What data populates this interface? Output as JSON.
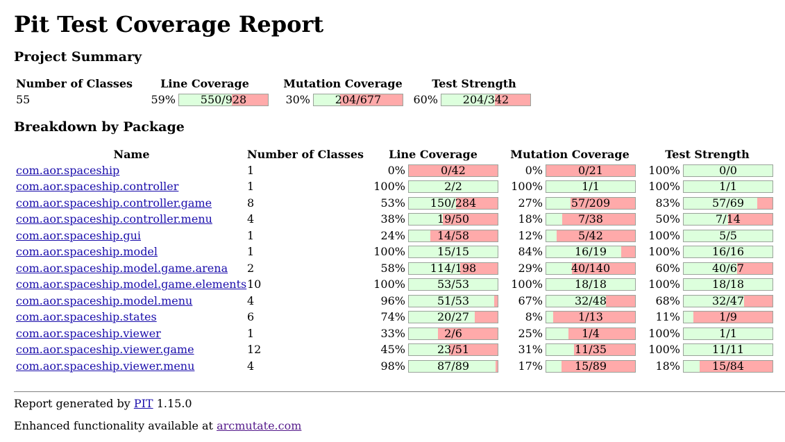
{
  "title": "Pit Test Coverage Report",
  "summary": {
    "heading": "Project Summary",
    "headers": {
      "classes": "Number of Classes",
      "line": "Line Coverage",
      "mutation": "Mutation Coverage",
      "strength": "Test Strength"
    },
    "classes": "55",
    "line_pct": "59%",
    "line_text": "550/928",
    "line_frac": 0.59,
    "mutation_pct": "30%",
    "mutation_text": "204/677",
    "mutation_frac": 0.3,
    "strength_pct": "60%",
    "strength_text": "204/342",
    "strength_frac": 0.6
  },
  "breakdown": {
    "heading": "Breakdown by Package",
    "headers": {
      "name": "Name",
      "classes": "Number of Classes",
      "line": "Line Coverage",
      "mutation": "Mutation Coverage",
      "strength": "Test Strength"
    },
    "packages": [
      {
        "name": "com.aor.spaceship",
        "classes": "1",
        "line_pct": "0%",
        "line_text": "0/42",
        "line_frac": 0.0,
        "mut_pct": "0%",
        "mut_text": "0/21",
        "mut_frac": 0.0,
        "str_pct": "100%",
        "str_text": "0/0",
        "str_frac": 1.0
      },
      {
        "name": "com.aor.spaceship.controller",
        "classes": "1",
        "line_pct": "100%",
        "line_text": "2/2",
        "line_frac": 1.0,
        "mut_pct": "100%",
        "mut_text": "1/1",
        "mut_frac": 1.0,
        "str_pct": "100%",
        "str_text": "1/1",
        "str_frac": 1.0
      },
      {
        "name": "com.aor.spaceship.controller.game",
        "classes": "8",
        "line_pct": "53%",
        "line_text": "150/284",
        "line_frac": 0.53,
        "mut_pct": "27%",
        "mut_text": "57/209",
        "mut_frac": 0.27,
        "str_pct": "83%",
        "str_text": "57/69",
        "str_frac": 0.83
      },
      {
        "name": "com.aor.spaceship.controller.menu",
        "classes": "4",
        "line_pct": "38%",
        "line_text": "19/50",
        "line_frac": 0.38,
        "mut_pct": "18%",
        "mut_text": "7/38",
        "mut_frac": 0.18,
        "str_pct": "50%",
        "str_text": "7/14",
        "str_frac": 0.5
      },
      {
        "name": "com.aor.spaceship.gui",
        "classes": "1",
        "line_pct": "24%",
        "line_text": "14/58",
        "line_frac": 0.24,
        "mut_pct": "12%",
        "mut_text": "5/42",
        "mut_frac": 0.12,
        "str_pct": "100%",
        "str_text": "5/5",
        "str_frac": 1.0
      },
      {
        "name": "com.aor.spaceship.model",
        "classes": "1",
        "line_pct": "100%",
        "line_text": "15/15",
        "line_frac": 1.0,
        "mut_pct": "84%",
        "mut_text": "16/19",
        "mut_frac": 0.84,
        "str_pct": "100%",
        "str_text": "16/16",
        "str_frac": 1.0
      },
      {
        "name": "com.aor.spaceship.model.game.arena",
        "classes": "2",
        "line_pct": "58%",
        "line_text": "114/198",
        "line_frac": 0.58,
        "mut_pct": "29%",
        "mut_text": "40/140",
        "mut_frac": 0.29,
        "str_pct": "60%",
        "str_text": "40/67",
        "str_frac": 0.6
      },
      {
        "name": "com.aor.spaceship.model.game.elements",
        "classes": "10",
        "line_pct": "100%",
        "line_text": "53/53",
        "line_frac": 1.0,
        "mut_pct": "100%",
        "mut_text": "18/18",
        "mut_frac": 1.0,
        "str_pct": "100%",
        "str_text": "18/18",
        "str_frac": 1.0
      },
      {
        "name": "com.aor.spaceship.model.menu",
        "classes": "4",
        "line_pct": "96%",
        "line_text": "51/53",
        "line_frac": 0.96,
        "mut_pct": "67%",
        "mut_text": "32/48",
        "mut_frac": 0.67,
        "str_pct": "68%",
        "str_text": "32/47",
        "str_frac": 0.68
      },
      {
        "name": "com.aor.spaceship.states",
        "classes": "6",
        "line_pct": "74%",
        "line_text": "20/27",
        "line_frac": 0.74,
        "mut_pct": "8%",
        "mut_text": "1/13",
        "mut_frac": 0.08,
        "str_pct": "11%",
        "str_text": "1/9",
        "str_frac": 0.11
      },
      {
        "name": "com.aor.spaceship.viewer",
        "classes": "1",
        "line_pct": "33%",
        "line_text": "2/6",
        "line_frac": 0.33,
        "mut_pct": "25%",
        "mut_text": "1/4",
        "mut_frac": 0.25,
        "str_pct": "100%",
        "str_text": "1/1",
        "str_frac": 1.0
      },
      {
        "name": "com.aor.spaceship.viewer.game",
        "classes": "12",
        "line_pct": "45%",
        "line_text": "23/51",
        "line_frac": 0.45,
        "mut_pct": "31%",
        "mut_text": "11/35",
        "mut_frac": 0.31,
        "str_pct": "100%",
        "str_text": "11/11",
        "str_frac": 1.0
      },
      {
        "name": "com.aor.spaceship.viewer.menu",
        "classes": "4",
        "line_pct": "98%",
        "line_text": "87/89",
        "line_frac": 0.98,
        "mut_pct": "17%",
        "mut_text": "15/89",
        "mut_frac": 0.17,
        "str_pct": "18%",
        "str_text": "15/84",
        "str_frac": 0.18
      }
    ]
  },
  "footer": {
    "generated_prefix": "Report generated by",
    "generated_link": "PIT",
    "version": "1.15.0",
    "enhanced_prefix": "Enhanced functionality available at",
    "enhanced_link": "arcmutate.com"
  },
  "colors": {
    "covered": "#ddffdd",
    "uncovered": "#ffaaaa",
    "link": "#1a0dab",
    "visited": "#551a8b"
  }
}
